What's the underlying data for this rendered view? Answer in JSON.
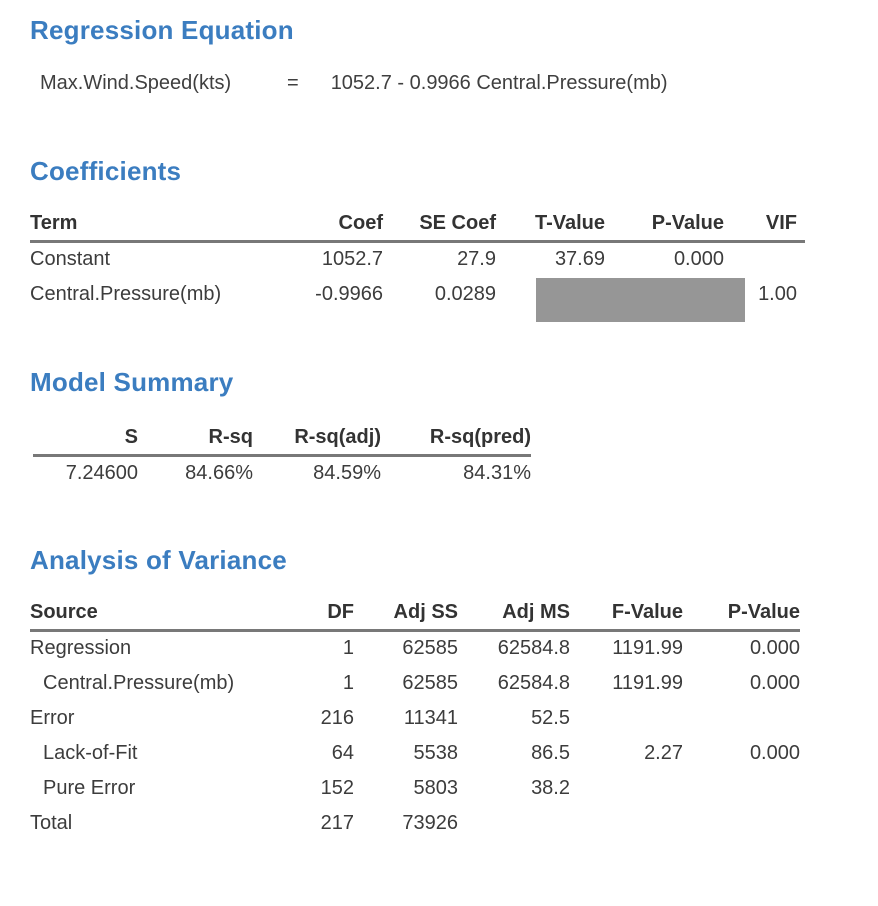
{
  "accent_color": "#3b7dc0",
  "redaction_color": "#969696",
  "regression_equation": {
    "heading": "Regression Equation",
    "equation": {
      "lhs": "Max.Wind.Speed(kts)",
      "equals": "=",
      "rhs": "1052.7 - 0.9966 Central.Pressure(mb)"
    }
  },
  "coefficients": {
    "heading": "Coefficients",
    "columns": [
      "Term",
      "Coef",
      "SE Coef",
      "T-Value",
      "P-Value",
      "VIF"
    ],
    "rows": [
      {
        "term": "Constant",
        "coef": "1052.7",
        "se_coef": "27.9",
        "t_value": "37.69",
        "p_value": "0.000",
        "vif": ""
      },
      {
        "term": "Central.Pressure(mb)",
        "coef": "-0.9966",
        "se_coef": "0.0289",
        "t_value": "",
        "p_value": "",
        "vif": "1.00"
      }
    ],
    "note": "t_value and p_value of second row hidden by gray redaction box"
  },
  "model_summary": {
    "heading": "Model Summary",
    "columns": [
      "S",
      "R-sq",
      "R-sq(adj)",
      "R-sq(pred)"
    ],
    "rows": [
      {
        "s": "7.24600",
        "r_sq": "84.66%",
        "r_sq_adj": "84.59%",
        "r_sq_pred": "84.31%"
      }
    ]
  },
  "anova": {
    "heading": "Analysis of Variance",
    "columns": [
      "Source",
      "DF",
      "Adj SS",
      "Adj MS",
      "F-Value",
      "P-Value"
    ],
    "rows": [
      {
        "source": "Regression",
        "df": "1",
        "adj_ss": "62585",
        "adj_ms": "62584.8",
        "f_value": "1191.99",
        "p_value": "0.000"
      },
      {
        "source": "Central.Pressure(mb)",
        "df": "1",
        "adj_ss": "62585",
        "adj_ms": "62584.8",
        "f_value": "1191.99",
        "p_value": "0.000"
      },
      {
        "source": "Error",
        "df": "216",
        "adj_ss": "11341",
        "adj_ms": "52.5",
        "f_value": "",
        "p_value": ""
      },
      {
        "source": "Lack-of-Fit",
        "df": "64",
        "adj_ss": "5538",
        "adj_ms": "86.5",
        "f_value": "2.27",
        "p_value": "0.000"
      },
      {
        "source": "Pure Error",
        "df": "152",
        "adj_ss": "5803",
        "adj_ms": "38.2",
        "f_value": "",
        "p_value": ""
      },
      {
        "source": "Total",
        "df": "217",
        "adj_ss": "73926",
        "adj_ms": "",
        "f_value": "",
        "p_value": ""
      }
    ]
  }
}
